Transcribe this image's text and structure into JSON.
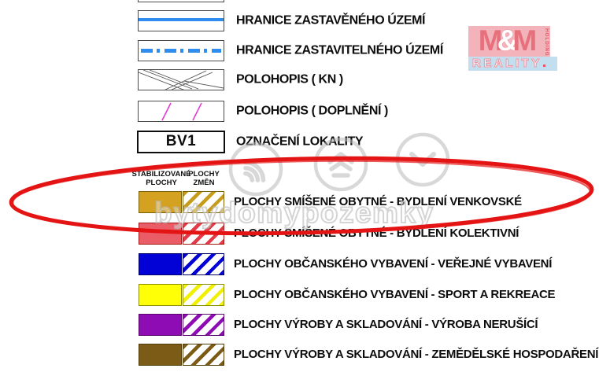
{
  "legend": {
    "line_items": [
      {
        "symbol": "solid-blue-line",
        "label": "HRANICE ZASTAVĚNÉHO ÚZEMÍ"
      },
      {
        "symbol": "dash-dot-blue-line",
        "label": "HRANICE ZASTAVITELNÉHO ÚZEMÍ"
      },
      {
        "symbol": "cadastre-lines",
        "label": "POLOHOPIS ( KN )"
      },
      {
        "symbol": "magenta-lines",
        "label": "POLOHOPIS ( DOPLNĚNÍ )"
      },
      {
        "symbol": "locality-code",
        "code": "BV1",
        "label": "OZNAČENÍ LOKALITY"
      }
    ],
    "column_headers": {
      "stabilized_line1": "STABILIZOVANÉ",
      "stabilized_line2": "PLOCHY",
      "changes_line1": "PLOCHY",
      "changes_line2": "ZMĚN"
    },
    "area_items": [
      {
        "label": "PLOCHY SMÍŠENÉ OBYTNÉ - BYDLENÍ VENKOVSKÉ",
        "fill": "#d4a120",
        "border": "#7c6208",
        "stripe": "#c79c1a",
        "highlighted": true
      },
      {
        "label": "PLOCHY SMÍŠENÉ OBYTNÉ - BYDLENÍ KOLEKTIVNÍ",
        "fill": "#ea5c66",
        "border": "#a31c1c",
        "stripe": "#e43a48",
        "highlighted": false
      },
      {
        "label": "PLOCHY OBČANSKÉHO VYBAVENÍ - VEŘEJNÉ VYBAVENÍ",
        "fill": "#0202d6",
        "border": "#01016e",
        "stripe": "#0202d6",
        "highlighted": false
      },
      {
        "label": "PLOCHY OBČANSKÉHO VYBAVENÍ - SPORT A REKREACE",
        "fill": "#ffff05",
        "border": "#8f8f06",
        "stripe": "#f0f000",
        "highlighted": false
      },
      {
        "label": "PLOCHY VÝROBY A SKLADOVÁNÍ - VÝROBA NERUŠÍCÍ",
        "fill": "#8d0cb4",
        "border": "#58066e",
        "stripe": "#8d0cb4",
        "highlighted": false
      },
      {
        "label": "PLOCHY VÝROBY A SKLADOVÁNÍ -  ZEMĚDĚLSKÉ HOSPODAŘENÍ",
        "fill": "#7c5b16",
        "border": "#523a08",
        "stripe": "#7c5b16",
        "highlighted": false
      }
    ],
    "symbol_colors": {
      "boundary_blue": "#2f8df0",
      "cadastre_gray": "#555555",
      "supplement_magenta": "#e23ad2"
    }
  },
  "annotation": {
    "shape": "hand-drawn-ellipse",
    "color": "#e41414"
  },
  "watermark": {
    "text": "bytydomypozemky",
    "icons": [
      "signal-arcs-icon",
      "layered-house-icon",
      "chevron-down-icon"
    ]
  },
  "logo": {
    "m1": "M",
    "amp": "&",
    "m2": "M",
    "holding": "HOLDING",
    "reality": "REALITY",
    "colors": {
      "pink_bg": "#f2a6ae",
      "red_text": "#e25866",
      "blue_bar": "#b9d9ec"
    }
  }
}
